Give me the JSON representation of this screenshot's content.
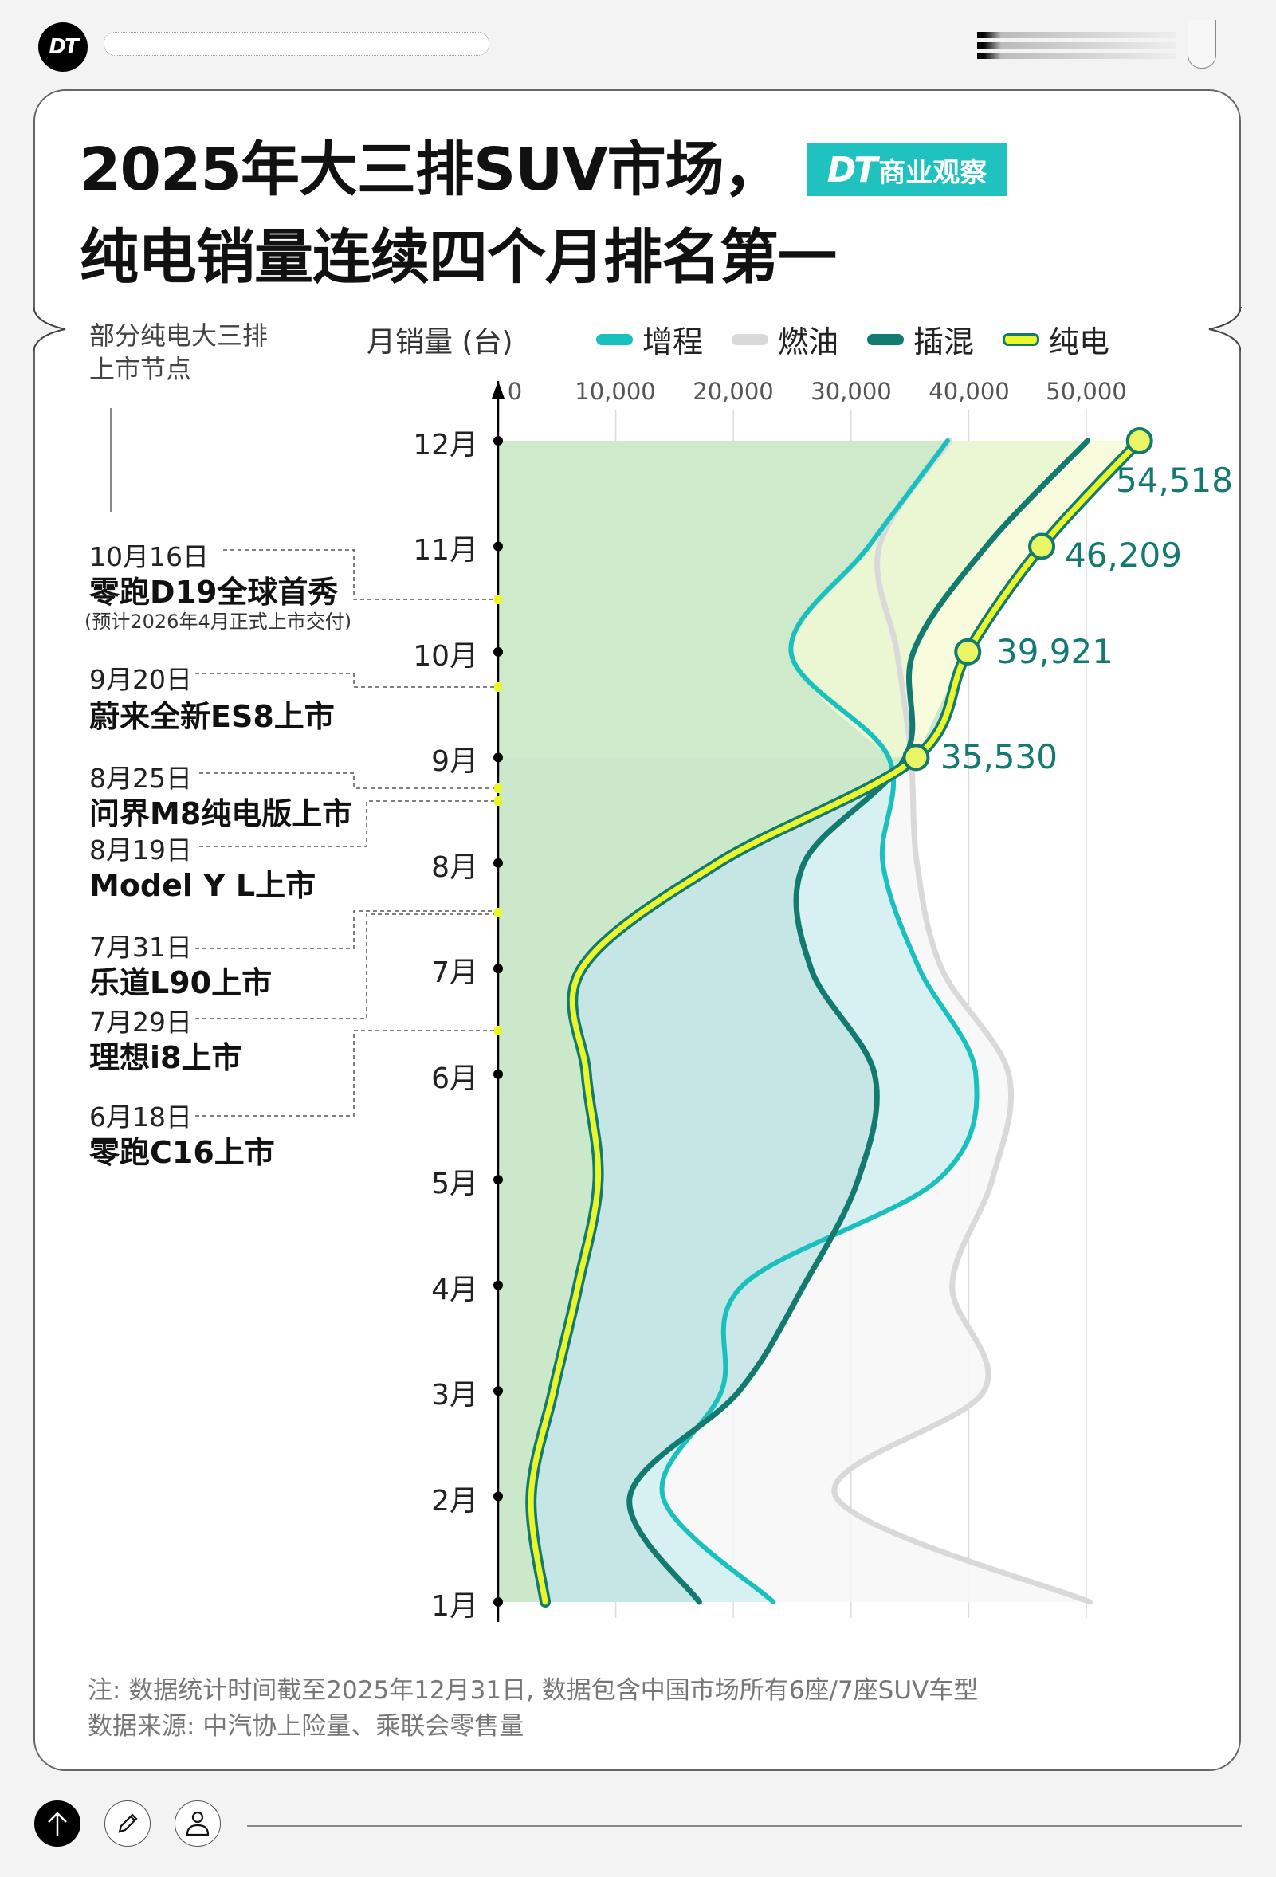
{
  "header": {
    "logo_text": "DT",
    "search_placeholder": ""
  },
  "title": {
    "line1": "2025年大三排SUV市场，",
    "line2": "纯电销量连续四个月排名第一",
    "brand_badge_dt": "DT",
    "brand_badge_text": "商业观察"
  },
  "left_panel": {
    "heading_line1": "部分纯电大三排",
    "heading_line2": "上市节点",
    "annotations": [
      {
        "date": "10月16日",
        "title": "零跑D19全球首秀",
        "sub": "(预计2026年4月正式上市交付)"
      },
      {
        "date": "9月20日",
        "title": "蔚来全新ES8上市"
      },
      {
        "date": "8月25日",
        "title": "问界M8纯电版上市"
      },
      {
        "date": "8月19日",
        "title": "Model Y L上市"
      },
      {
        "date": "7月31日",
        "title": "乐道L90上市"
      },
      {
        "date": "7月29日",
        "title": "理想i8上市"
      },
      {
        "date": "6月18日",
        "title": "零跑C16上市"
      }
    ]
  },
  "colors": {
    "erev": "#19c0bd",
    "ice": "#d9d9d9",
    "phev": "#137a6f",
    "bev_fill": "#eaf52a",
    "bev_stroke": "#137a6f",
    "area_bev": "#cbe8cb",
    "area_erev": "#d7f1f2",
    "area_phev": "#c3e4e4",
    "area_bev_top": "#f8fcdc"
  },
  "chart_data": {
    "type": "line",
    "title": "2025年大三排SUV市场，纯电销量连续四个月排名第一",
    "xlabel": "月销量 (台)",
    "ylabel": "",
    "orientation": "horizontal-values, months on vertical axis (1月 bottom to 12月 top)",
    "xlim": [
      0,
      55000
    ],
    "x_ticks": [
      "0",
      "10,000",
      "20,000",
      "30,000",
      "40,000",
      "50,000"
    ],
    "grid": true,
    "legend_position": "top",
    "categories": [
      "1月",
      "2月",
      "3月",
      "4月",
      "5月",
      "6月",
      "7月",
      "8月",
      "9月",
      "10月",
      "11月",
      "12月"
    ],
    "series": [
      {
        "name": "增程",
        "values": [
          23400,
          14000,
          19000,
          20800,
          37400,
          40600,
          35800,
          32700,
          33200,
          24900,
          31500,
          38200
        ]
      },
      {
        "name": "燃油",
        "values": [
          50300,
          28700,
          41300,
          38600,
          42000,
          43400,
          37700,
          35600,
          35100,
          33900,
          32400,
          38400
        ]
      },
      {
        "name": "插混",
        "values": [
          17100,
          11200,
          20500,
          26000,
          30600,
          32000,
          26600,
          26000,
          34600,
          35300,
          41500,
          50100
        ]
      },
      {
        "name": "纯电",
        "values": [
          4000,
          2800,
          4700,
          6800,
          8500,
          7500,
          7100,
          18700,
          35530,
          39921,
          46209,
          54518
        ]
      }
    ],
    "data_labels": [
      {
        "series": "纯电",
        "month": "9月",
        "text": "35,530"
      },
      {
        "series": "纯电",
        "month": "10月",
        "text": "39,921"
      },
      {
        "series": "纯电",
        "month": "11月",
        "text": "46,209"
      },
      {
        "series": "纯电",
        "month": "12月",
        "text": "54,518"
      }
    ],
    "event_markers": [
      {
        "date": "10月16日",
        "label": "零跑D19全球首秀"
      },
      {
        "date": "9月20日",
        "label": "蔚来全新ES8上市"
      },
      {
        "date": "8月25日",
        "label": "问界M8纯电版上市"
      },
      {
        "date": "8月19日",
        "label": "Model Y L上市"
      },
      {
        "date": "7月31日",
        "label": "乐道L90上市"
      },
      {
        "date": "7月29日",
        "label": "理想i8上市"
      },
      {
        "date": "6月18日",
        "label": "零跑C16上市"
      }
    ]
  },
  "legend": [
    {
      "label": "增程",
      "color": "#19c0bd"
    },
    {
      "label": "燃油",
      "color": "#d9d9d9"
    },
    {
      "label": "插混",
      "color": "#137a6f"
    },
    {
      "label": "纯电",
      "color": "#eaf52a"
    }
  ],
  "footer": {
    "note": "注: 数据统计时间截至2025年12月31日, 数据包含中国市场所有6座/7座SUV车型",
    "source": "数据来源: 中汽协上险量、乘联会零售量"
  }
}
